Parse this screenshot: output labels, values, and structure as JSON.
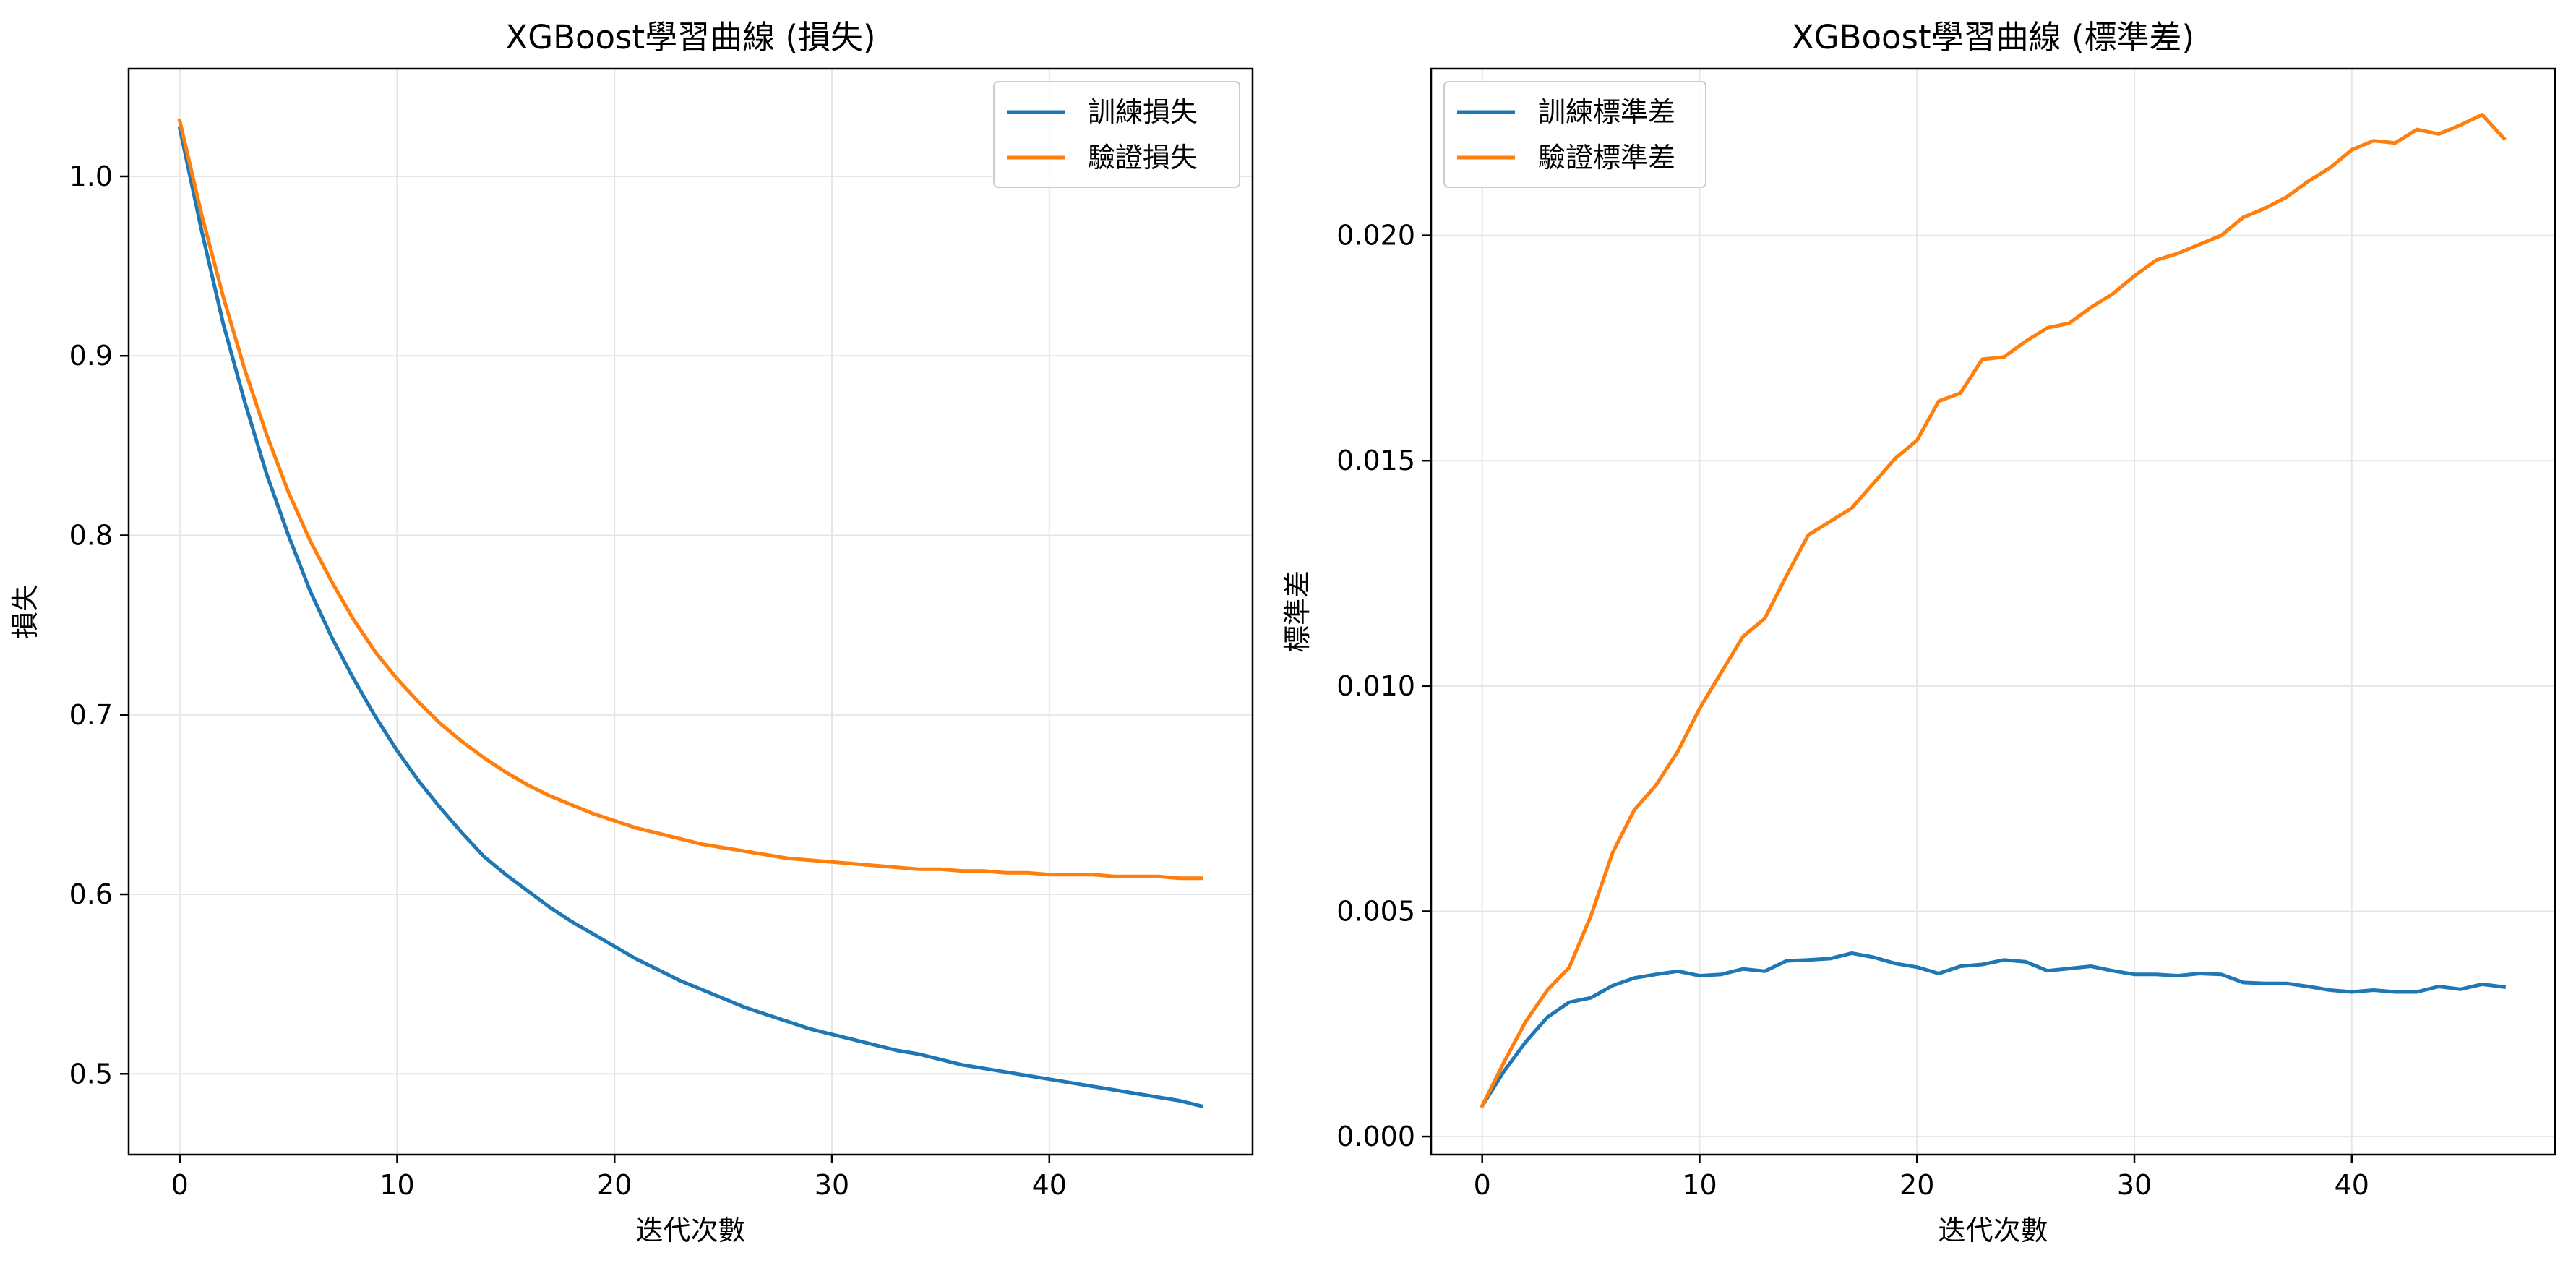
{
  "chart_data": [
    {
      "type": "line",
      "title": "XGBoost學習曲線 (損失)",
      "xlabel": "迭代次數",
      "ylabel": "損失",
      "xlim": [
        -2.35,
        49.35
      ],
      "ylim": [
        0.455,
        1.06
      ],
      "xticks": [
        0,
        10,
        20,
        30,
        40
      ],
      "yticks": [
        0.5,
        0.6,
        0.7,
        0.8,
        0.9,
        1.0
      ],
      "ytick_labels": [
        "0.5",
        "0.6",
        "0.7",
        "0.8",
        "0.9",
        "1.0"
      ],
      "grid": true,
      "legend_position": "top-right",
      "x": [
        0,
        1,
        2,
        3,
        4,
        5,
        6,
        7,
        8,
        9,
        10,
        11,
        12,
        13,
        14,
        15,
        16,
        17,
        18,
        19,
        20,
        21,
        22,
        23,
        24,
        25,
        26,
        27,
        28,
        29,
        30,
        31,
        32,
        33,
        34,
        35,
        36,
        37,
        38,
        39,
        40,
        41,
        42,
        43,
        44,
        45,
        46,
        47
      ],
      "series": [
        {
          "name": "訓練損失",
          "color": "#1f77b4",
          "values": [
            1.027,
            0.97,
            0.918,
            0.874,
            0.834,
            0.8,
            0.769,
            0.743,
            0.72,
            0.699,
            0.68,
            0.663,
            0.648,
            0.634,
            0.621,
            0.611,
            0.602,
            0.593,
            0.585,
            0.578,
            0.571,
            0.564,
            0.558,
            0.552,
            0.547,
            0.542,
            0.537,
            0.533,
            0.529,
            0.525,
            0.522,
            0.519,
            0.516,
            0.513,
            0.511,
            0.508,
            0.505,
            0.503,
            0.501,
            0.499,
            0.497,
            0.495,
            0.493,
            0.491,
            0.489,
            0.487,
            0.485,
            0.482
          ]
        },
        {
          "name": "驗證損失",
          "color": "#ff7f0e",
          "values": [
            1.031,
            0.979,
            0.933,
            0.892,
            0.856,
            0.824,
            0.797,
            0.774,
            0.753,
            0.735,
            0.72,
            0.707,
            0.695,
            0.685,
            0.676,
            0.668,
            0.661,
            0.655,
            0.65,
            0.645,
            0.641,
            0.637,
            0.634,
            0.631,
            0.628,
            0.626,
            0.624,
            0.622,
            0.62,
            0.619,
            0.618,
            0.617,
            0.616,
            0.615,
            0.614,
            0.614,
            0.613,
            0.613,
            0.612,
            0.612,
            0.611,
            0.611,
            0.611,
            0.61,
            0.61,
            0.61,
            0.609,
            0.609
          ]
        }
      ]
    },
    {
      "type": "line",
      "title": "XGBoost學習曲線 (標準差)",
      "xlabel": "迭代次數",
      "ylabel": "標準差",
      "xlim": [
        -2.35,
        49.35
      ],
      "ylim": [
        -0.0004,
        0.0237
      ],
      "xticks": [
        0,
        10,
        20,
        30,
        40
      ],
      "yticks": [
        0.0,
        0.005,
        0.01,
        0.015,
        0.02
      ],
      "ytick_labels": [
        "0.000",
        "0.005",
        "0.010",
        "0.015",
        "0.020"
      ],
      "grid": true,
      "legend_position": "top-left",
      "x": [
        0,
        1,
        2,
        3,
        4,
        5,
        6,
        7,
        8,
        9,
        10,
        11,
        12,
        13,
        14,
        15,
        16,
        17,
        18,
        19,
        20,
        21,
        22,
        23,
        24,
        25,
        26,
        27,
        28,
        29,
        30,
        31,
        32,
        33,
        34,
        35,
        36,
        37,
        38,
        39,
        40,
        41,
        42,
        43,
        44,
        45,
        46,
        47
      ],
      "series": [
        {
          "name": "訓練標準差",
          "color": "#1f77b4",
          "values": [
            0.00068,
            0.00145,
            0.0021,
            0.00265,
            0.00298,
            0.00308,
            0.00335,
            0.00352,
            0.0036,
            0.00367,
            0.00357,
            0.0036,
            0.00372,
            0.00367,
            0.0039,
            0.00392,
            0.00395,
            0.00407,
            0.00398,
            0.00384,
            0.00376,
            0.00362,
            0.00378,
            0.00382,
            0.00392,
            0.00388,
            0.00368,
            0.00373,
            0.00378,
            0.00368,
            0.0036,
            0.0036,
            0.00357,
            0.00362,
            0.0036,
            0.00342,
            0.0034,
            0.0034,
            0.00333,
            0.00325,
            0.00321,
            0.00325,
            0.00321,
            0.00321,
            0.00333,
            0.00327,
            0.00338,
            0.00332
          ]
        },
        {
          "name": "驗證標準差",
          "color": "#ff7f0e",
          "values": [
            0.00068,
            0.00165,
            0.00255,
            0.00325,
            0.00375,
            0.0049,
            0.0063,
            0.00725,
            0.0078,
            0.00855,
            0.0095,
            0.0103,
            0.0111,
            0.0115,
            0.01245,
            0.01335,
            0.01365,
            0.01395,
            0.0145,
            0.01505,
            0.01545,
            0.01632,
            0.0165,
            0.01725,
            0.0173,
            0.01765,
            0.01795,
            0.01805,
            0.0184,
            0.0187,
            0.0191,
            0.01945,
            0.0196,
            0.0198,
            0.02,
            0.0204,
            0.0206,
            0.02085,
            0.0212,
            0.0215,
            0.0219,
            0.0221,
            0.02205,
            0.02235,
            0.02225,
            0.02245,
            0.02268,
            0.02215
          ]
        }
      ]
    }
  ]
}
